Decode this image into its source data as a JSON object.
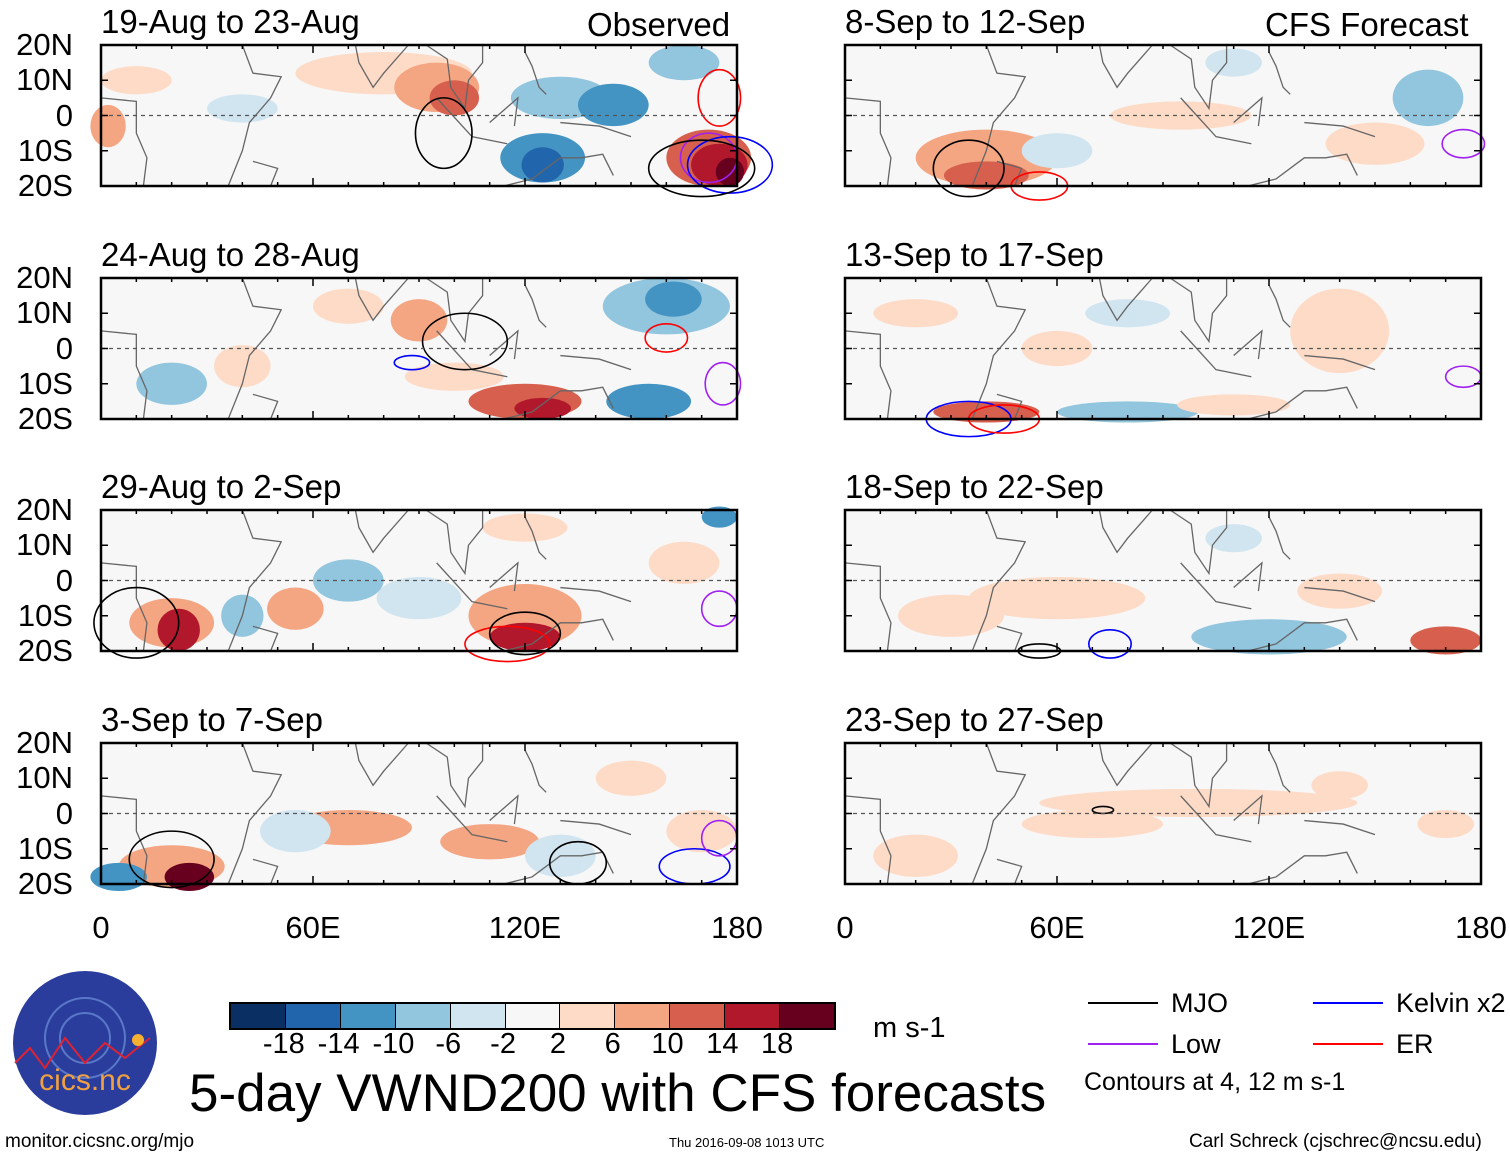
{
  "title": "5-day VWND200 with CFS forecasts",
  "observed_label": "Observed",
  "forecast_label": "CFS Forecast",
  "left_panels": [
    "19-Aug to 23-Aug",
    "24-Aug to 28-Aug",
    "29-Aug to 2-Sep",
    "3-Sep to 7-Sep"
  ],
  "right_panels": [
    "8-Sep to 12-Sep",
    "13-Sep to 17-Sep",
    "18-Sep to 22-Sep",
    "23-Sep to 27-Sep"
  ],
  "lat_labels": [
    "20N",
    "10N",
    "0",
    "10S",
    "20S"
  ],
  "lon_labels": [
    "0",
    "60E",
    "120E",
    "180"
  ],
  "colorbar": {
    "ticks": [
      "-18",
      "-14",
      "-10",
      "-6",
      "-2",
      "2",
      "6",
      "10",
      "14",
      "18"
    ],
    "colors": [
      "#0a2f62",
      "#2166ac",
      "#4393c3",
      "#92c5de",
      "#d1e5f0",
      "#f7f7f7",
      "#fddbc7",
      "#f4a582",
      "#d6604d",
      "#b2182b",
      "#67001f"
    ],
    "units": "m s-1"
  },
  "legend": [
    {
      "label": "MJO",
      "color": "#000000"
    },
    {
      "label": "Kelvin x2",
      "color": "#0000ff"
    },
    {
      "label": "Low",
      "color": "#a020f0"
    },
    {
      "label": "ER",
      "color": "#ff0000"
    }
  ],
  "contour_note": "Contours at 4, 12 m s-1",
  "logo_text": "cics.nc",
  "logo_ring_text": "Cooperative Institute for Climate and Satellites",
  "footer": {
    "url": "monitor.cicsnc.org/mjo",
    "timestamp": "Thu 2016-09-08 1013 UTC",
    "author": "Carl Schreck (cjschrec@ncsu.edu)"
  }
}
